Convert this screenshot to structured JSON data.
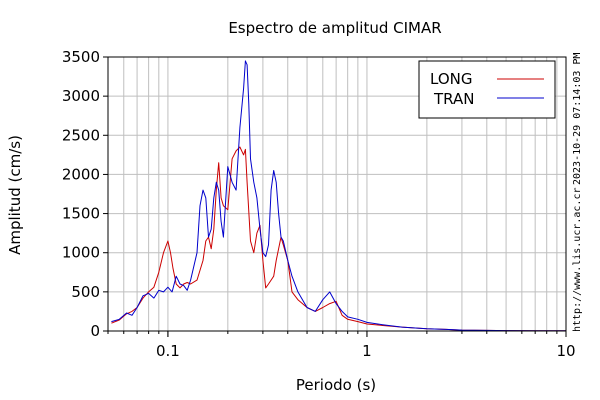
{
  "chart_data": {
    "type": "line",
    "title": "Espectro de amplitud CIMAR",
    "xlabel": "Periodo (s)",
    "ylabel": "Amplitud (cm/s)",
    "x_scale": "log",
    "xlim": [
      0.05,
      10
    ],
    "ylim": [
      0,
      3500
    ],
    "x_ticks": [
      0.1,
      1,
      10
    ],
    "x_tick_labels": [
      "0.1",
      "1",
      "10"
    ],
    "y_ticks": [
      0,
      500,
      1000,
      1500,
      2000,
      2500,
      3000,
      3500
    ],
    "y_tick_labels": [
      "0",
      "500",
      "1000",
      "1500",
      "2000",
      "2500",
      "3000",
      "3500"
    ],
    "grid": true,
    "legend_position": "top-right",
    "series": [
      {
        "name": "LONG",
        "color": "#cc0000",
        "x": [
          0.052,
          0.057,
          0.062,
          0.066,
          0.07,
          0.075,
          0.08,
          0.085,
          0.09,
          0.095,
          0.1,
          0.103,
          0.106,
          0.11,
          0.115,
          0.12,
          0.125,
          0.13,
          0.14,
          0.15,
          0.155,
          0.16,
          0.165,
          0.17,
          0.175,
          0.18,
          0.185,
          0.19,
          0.2,
          0.21,
          0.22,
          0.23,
          0.24,
          0.245,
          0.25,
          0.26,
          0.27,
          0.28,
          0.29,
          0.3,
          0.31,
          0.32,
          0.33,
          0.34,
          0.35,
          0.36,
          0.37,
          0.38,
          0.4,
          0.42,
          0.45,
          0.5,
          0.55,
          0.6,
          0.65,
          0.7,
          0.75,
          0.8,
          0.9,
          1.0,
          1.2,
          1.5,
          2.0,
          2.5,
          3.0,
          4.0,
          5.0,
          7.0,
          10.0
        ],
        "values": [
          100,
          140,
          220,
          250,
          300,
          420,
          500,
          560,
          750,
          1000,
          1150,
          1000,
          800,
          600,
          550,
          600,
          620,
          600,
          650,
          900,
          1150,
          1200,
          1050,
          1300,
          1800,
          2150,
          1700,
          1600,
          1550,
          2200,
          2300,
          2350,
          2250,
          2320,
          1900,
          1150,
          1000,
          1250,
          1350,
          900,
          550,
          600,
          650,
          700,
          900,
          1050,
          1200,
          1100,
          900,
          500,
          400,
          300,
          250,
          300,
          350,
          380,
          200,
          150,
          120,
          90,
          70,
          50,
          30,
          20,
          12,
          8,
          5,
          3,
          2
        ]
      },
      {
        "name": "TRAN",
        "color": "#0000cc",
        "x": [
          0.052,
          0.057,
          0.062,
          0.066,
          0.07,
          0.075,
          0.08,
          0.085,
          0.09,
          0.095,
          0.1,
          0.105,
          0.11,
          0.115,
          0.12,
          0.125,
          0.13,
          0.14,
          0.145,
          0.15,
          0.155,
          0.16,
          0.165,
          0.17,
          0.175,
          0.18,
          0.185,
          0.19,
          0.2,
          0.21,
          0.22,
          0.23,
          0.24,
          0.245,
          0.25,
          0.255,
          0.26,
          0.27,
          0.28,
          0.29,
          0.3,
          0.31,
          0.32,
          0.33,
          0.34,
          0.35,
          0.36,
          0.37,
          0.38,
          0.4,
          0.42,
          0.45,
          0.5,
          0.55,
          0.6,
          0.65,
          0.7,
          0.75,
          0.8,
          0.9,
          1.0,
          1.2,
          1.5,
          2.0,
          2.5,
          3.0,
          4.0,
          5.0,
          7.0,
          10.0
        ],
        "values": [
          120,
          150,
          230,
          200,
          300,
          450,
          480,
          420,
          520,
          500,
          560,
          500,
          700,
          600,
          580,
          520,
          650,
          1000,
          1600,
          1800,
          1700,
          1200,
          1300,
          1700,
          1900,
          1800,
          1400,
          1200,
          2100,
          1900,
          1800,
          2600,
          3100,
          3450,
          3400,
          2900,
          2200,
          1900,
          1700,
          1300,
          1000,
          950,
          1100,
          1800,
          2050,
          1900,
          1500,
          1200,
          1150,
          900,
          700,
          500,
          300,
          250,
          400,
          500,
          350,
          250,
          180,
          150,
          110,
          80,
          50,
          30,
          20,
          12,
          8,
          5,
          3,
          2
        ]
      }
    ]
  },
  "side_text": {
    "timestamp": "2023-10-29 07:14:03 PM",
    "url": "http://www.lis.ucr.ac.cr"
  }
}
